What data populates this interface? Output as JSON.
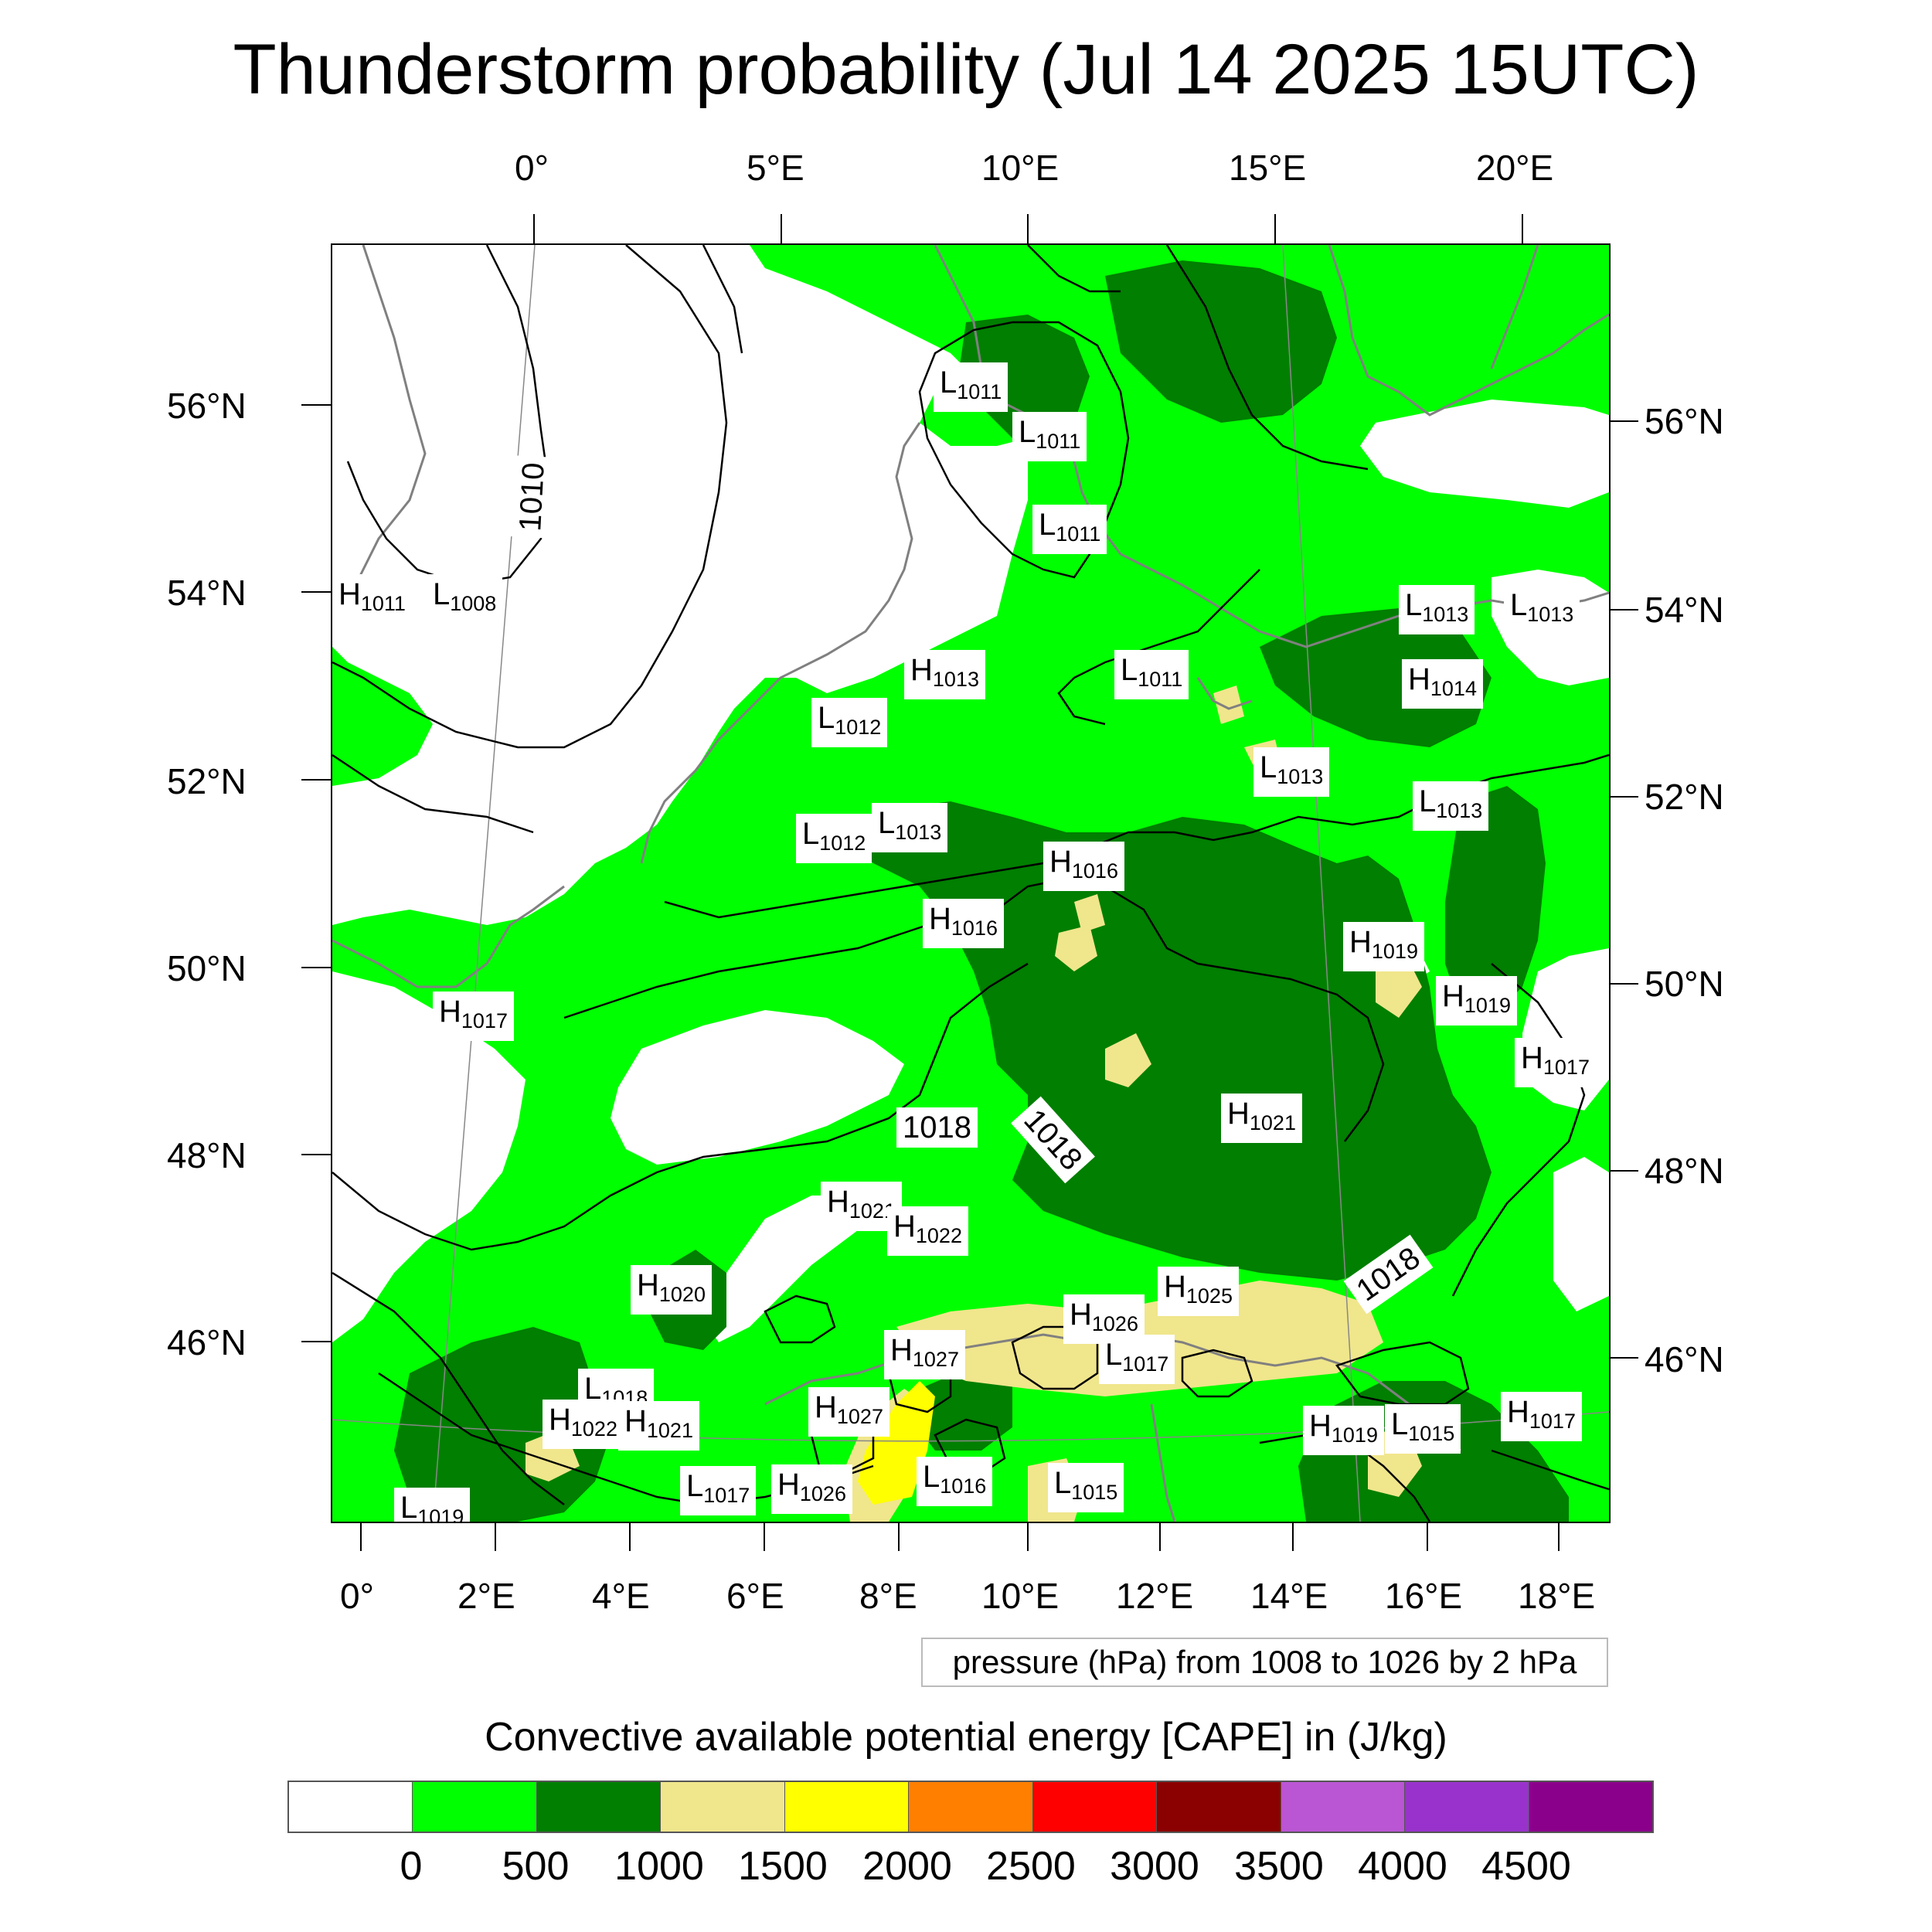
{
  "title": "Thunderstorm probability (Jul 14 2025 15UTC)",
  "axes": {
    "top_lon_labels": [
      "0°",
      "5°E",
      "10°E",
      "15°E",
      "20°E"
    ],
    "bottom_lon_labels": [
      "0°",
      "2°E",
      "4°E",
      "6°E",
      "8°E",
      "10°E",
      "12°E",
      "14°E",
      "16°E",
      "18°E"
    ],
    "left_lat_labels": [
      "56°N",
      "54°N",
      "52°N",
      "50°N",
      "48°N",
      "46°N"
    ],
    "right_lat_labels": [
      "56°N",
      "54°N",
      "52°N",
      "50°N",
      "48°N",
      "46°N"
    ]
  },
  "contour_note": "pressure (hPa) from 1008 to 1026 by 2 hPa",
  "colorbar": {
    "title": "Convective available potential energy [CAPE] in (J/kg)",
    "colors": [
      "#ffffff",
      "#00ff00",
      "#007f00",
      "#f0e68c",
      "#ffff00",
      "#ff7f00",
      "#ff0000",
      "#8b0000",
      "#ba55d3",
      "#9932cc",
      "#8b008b"
    ],
    "tick_labels": [
      "0",
      "500",
      "1000",
      "1500",
      "2000",
      "2500",
      "3000",
      "3500",
      "4000",
      "4500"
    ]
  },
  "contour_labels": [
    "1010",
    "1018",
    "1018",
    "1018"
  ],
  "pressure_centers": [
    {
      "t": "L",
      "v": "1011"
    },
    {
      "t": "L",
      "v": "1011"
    },
    {
      "t": "L",
      "v": "1011"
    },
    {
      "t": "H",
      "v": "1011"
    },
    {
      "t": "L",
      "v": "1008"
    },
    {
      "t": "H",
      "v": "1013"
    },
    {
      "t": "L",
      "v": "1011"
    },
    {
      "t": "L",
      "v": "1012"
    },
    {
      "t": "L",
      "v": "1013"
    },
    {
      "t": "L",
      "v": "1013"
    },
    {
      "t": "H",
      "v": "1014"
    },
    {
      "t": "L",
      "v": "1013"
    },
    {
      "t": "L",
      "v": "1013"
    },
    {
      "t": "L",
      "v": "1012"
    },
    {
      "t": "L",
      "v": "1013"
    },
    {
      "t": "H",
      "v": "1016"
    },
    {
      "t": "H",
      "v": "1016"
    },
    {
      "t": "H",
      "v": "1019"
    },
    {
      "t": "H",
      "v": "1019"
    },
    {
      "t": "H",
      "v": "1017"
    },
    {
      "t": "H",
      "v": "1017"
    },
    {
      "t": "H",
      "v": "1021"
    },
    {
      "t": "H",
      "v": "1021"
    },
    {
      "t": "H",
      "v": "1022"
    },
    {
      "t": "H",
      "v": "1020"
    },
    {
      "t": "H",
      "v": "1025"
    },
    {
      "t": "H",
      "v": "1026"
    },
    {
      "t": "L",
      "v": "1017"
    },
    {
      "t": "H",
      "v": "1027"
    },
    {
      "t": "H",
      "v": "1027"
    },
    {
      "t": "L",
      "v": "1018"
    },
    {
      "t": "H",
      "v": "1022"
    },
    {
      "t": "H",
      "v": "1021"
    },
    {
      "t": "L",
      "v": "1017"
    },
    {
      "t": "H",
      "v": "1026"
    },
    {
      "t": "L",
      "v": "1016"
    },
    {
      "t": "L",
      "v": "1015"
    },
    {
      "t": "H",
      "v": "1019"
    },
    {
      "t": "L",
      "v": "1015"
    },
    {
      "t": "H",
      "v": "1017"
    },
    {
      "t": "L",
      "v": "1019"
    }
  ]
}
